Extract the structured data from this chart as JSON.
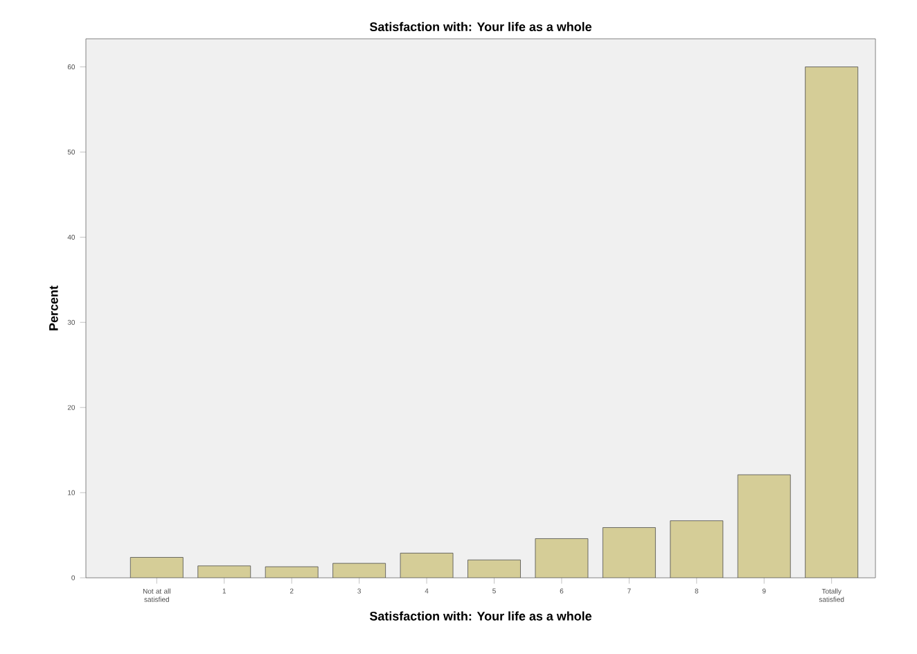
{
  "chart_data": {
    "type": "bar",
    "title": "Satisfaction with: Your life as a whole",
    "xlabel": "Satisfaction with: Your life as a whole",
    "ylabel": "Percent",
    "categories": [
      "Not at all satisfied",
      "1",
      "2",
      "3",
      "4",
      "5",
      "6",
      "7",
      "8",
      "9",
      "Totally satisfied"
    ],
    "values": [
      2.4,
      1.4,
      1.3,
      1.7,
      2.9,
      2.1,
      4.6,
      5.9,
      6.7,
      12.1,
      60.0
    ],
    "color": "#d5cd97",
    "ylim": [
      0,
      63.3
    ],
    "yticks": [
      0,
      10,
      20,
      30,
      40,
      50,
      60
    ],
    "grid": false
  }
}
